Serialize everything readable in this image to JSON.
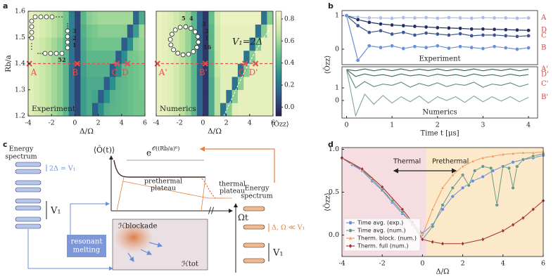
{
  "panel_labels": [
    "a",
    "b",
    "c",
    "d"
  ],
  "chart_data": [
    {
      "type": "heatmap",
      "title": "Experiment",
      "x_label": "Δ/Ω",
      "y_label": "Rb/a",
      "x_bins": [
        -4,
        -3.5,
        -3,
        -2.5,
        -2,
        -1.5,
        -1,
        -0.5,
        0,
        0.5,
        1,
        1.5,
        2,
        2.5,
        3,
        3.5,
        4,
        4.5,
        5,
        5.5,
        6
      ],
      "y_bins": [
        1.2,
        1.25,
        1.3,
        1.35,
        1.4,
        1.45,
        1.5,
        1.55,
        1.6
      ],
      "z": [
        [
          0.78,
          0.75,
          0.7,
          0.66,
          0.6,
          0.55,
          0.45,
          0.2,
          0.05,
          0.35,
          0.4,
          0.12,
          0.3,
          0.42,
          0.44,
          0.45,
          0.46,
          0.48,
          0.5,
          0.5
        ],
        [
          0.78,
          0.75,
          0.7,
          0.66,
          0.6,
          0.55,
          0.45,
          0.2,
          0.05,
          0.35,
          0.4,
          0.38,
          0.12,
          0.3,
          0.43,
          0.45,
          0.46,
          0.48,
          0.5,
          0.5
        ],
        [
          0.78,
          0.75,
          0.7,
          0.66,
          0.6,
          0.55,
          0.45,
          0.2,
          0.05,
          0.35,
          0.4,
          0.4,
          0.4,
          0.12,
          0.3,
          0.44,
          0.46,
          0.48,
          0.5,
          0.52
        ],
        [
          0.78,
          0.75,
          0.7,
          0.66,
          0.6,
          0.55,
          0.45,
          0.2,
          0.05,
          0.36,
          0.42,
          0.42,
          0.42,
          0.42,
          0.12,
          0.3,
          0.46,
          0.48,
          0.5,
          0.52
        ],
        [
          0.78,
          0.75,
          0.7,
          0.66,
          0.6,
          0.55,
          0.45,
          0.2,
          0.05,
          0.38,
          0.45,
          0.45,
          0.45,
          0.45,
          0.45,
          0.12,
          0.3,
          0.5,
          0.52,
          0.55
        ],
        [
          0.78,
          0.75,
          0.7,
          0.66,
          0.6,
          0.55,
          0.45,
          0.2,
          0.05,
          0.4,
          0.48,
          0.5,
          0.5,
          0.5,
          0.5,
          0.5,
          0.12,
          0.3,
          0.55,
          0.58
        ],
        [
          0.8,
          0.78,
          0.74,
          0.7,
          0.65,
          0.6,
          0.5,
          0.25,
          0.05,
          0.42,
          0.5,
          0.52,
          0.55,
          0.55,
          0.55,
          0.55,
          0.55,
          0.12,
          0.35,
          0.6
        ],
        [
          0.8,
          0.78,
          0.74,
          0.7,
          0.65,
          0.6,
          0.5,
          0.25,
          0.05,
          0.45,
          0.55,
          0.58,
          0.6,
          0.6,
          0.6,
          0.6,
          0.6,
          0.6,
          0.15,
          0.4
        ]
      ],
      "xlim": [
        -4,
        6
      ],
      "ylim": [
        1.2,
        1.6
      ],
      "xticks": [
        -4,
        -2,
        0,
        2,
        4,
        6
      ],
      "yticks": [
        1.2,
        1.3,
        1.4,
        1.5,
        1.6
      ],
      "cut_line": 1.4,
      "marker_color": "#e0524e",
      "markers": [
        {
          "label": "A",
          "x": -3.9,
          "y": 1.4
        },
        {
          "label": "B",
          "x": 0.2,
          "y": 1.4
        },
        {
          "label": "C",
          "x": 3.6,
          "y": 1.4
        },
        {
          "label": "D",
          "x": 4.5,
          "y": 1.4
        }
      ],
      "inset_labels": [
        "3",
        "2",
        "1",
        "52"
      ]
    },
    {
      "type": "heatmap",
      "title": "Numerics",
      "x_label": "Δ/Ω",
      "annotation": "V₁=2Δ",
      "x_bins": [
        -4,
        -3.5,
        -3,
        -2.5,
        -2,
        -1.5,
        -1,
        -0.5,
        0,
        0.5,
        1,
        1.5,
        2,
        2.5,
        3,
        3.5,
        4,
        4.5,
        5,
        5.5,
        6
      ],
      "y_bins": [
        1.2,
        1.25,
        1.3,
        1.35,
        1.4,
        1.45,
        1.5,
        1.55,
        1.6
      ],
      "z": [
        [
          0.82,
          0.8,
          0.77,
          0.72,
          0.66,
          0.58,
          0.45,
          0.15,
          0.0,
          0.4,
          0.65,
          0.2,
          0.55,
          0.78,
          0.8,
          0.8,
          0.8,
          0.8,
          0.8,
          0.8
        ],
        [
          0.82,
          0.8,
          0.77,
          0.72,
          0.66,
          0.58,
          0.45,
          0.15,
          0.0,
          0.4,
          0.65,
          0.78,
          0.2,
          0.55,
          0.8,
          0.8,
          0.8,
          0.8,
          0.8,
          0.8
        ],
        [
          0.82,
          0.8,
          0.77,
          0.72,
          0.66,
          0.58,
          0.45,
          0.15,
          0.0,
          0.4,
          0.65,
          0.78,
          0.78,
          0.2,
          0.55,
          0.8,
          0.8,
          0.8,
          0.8,
          0.8
        ],
        [
          0.82,
          0.8,
          0.77,
          0.72,
          0.66,
          0.58,
          0.45,
          0.15,
          0.0,
          0.42,
          0.68,
          0.78,
          0.78,
          0.78,
          0.2,
          0.55,
          0.8,
          0.8,
          0.8,
          0.8
        ],
        [
          0.82,
          0.8,
          0.77,
          0.72,
          0.66,
          0.58,
          0.45,
          0.15,
          0.0,
          0.42,
          0.7,
          0.8,
          0.8,
          0.8,
          0.8,
          0.2,
          0.55,
          0.8,
          0.8,
          0.8
        ],
        [
          0.82,
          0.8,
          0.77,
          0.72,
          0.66,
          0.58,
          0.45,
          0.15,
          0.0,
          0.45,
          0.72,
          0.8,
          0.8,
          0.8,
          0.8,
          0.8,
          0.2,
          0.55,
          0.8,
          0.8
        ],
        [
          0.82,
          0.8,
          0.77,
          0.72,
          0.66,
          0.58,
          0.45,
          0.15,
          0.0,
          0.45,
          0.72,
          0.8,
          0.8,
          0.8,
          0.8,
          0.8,
          0.8,
          0.2,
          0.55,
          0.8
        ],
        [
          0.82,
          0.8,
          0.77,
          0.72,
          0.66,
          0.58,
          0.45,
          0.15,
          0.0,
          0.48,
          0.75,
          0.82,
          0.82,
          0.82,
          0.82,
          0.82,
          0.82,
          0.82,
          0.2,
          0.55
        ]
      ],
      "xlim": [
        -4,
        6
      ],
      "ylim": [
        1.2,
        1.6
      ],
      "xticks": [
        -4,
        -2,
        0,
        2,
        4,
        6
      ],
      "cut_line": 1.4,
      "marker_color": "#e0524e",
      "markers": [
        {
          "label": "A'",
          "x": -3.9,
          "y": 1.4
        },
        {
          "label": "B'",
          "x": 0.2,
          "y": 1.4
        },
        {
          "label": "C'",
          "x": 3.6,
          "y": 1.4
        },
        {
          "label": "D'",
          "x": 4.5,
          "y": 1.4
        }
      ],
      "inset_labels": [
        "5",
        "4",
        "3",
        "2",
        "1",
        "16"
      ],
      "colorbar_label": "⟨Ôzz⟩",
      "zlim": [
        -0.08,
        0.87
      ],
      "colormap": [
        "#2b1d4e",
        "#2e5a8c",
        "#2b8f8e",
        "#6cc28a",
        "#c7e6a3",
        "#f6f6cc"
      ],
      "colorbar_ticks": [
        {
          "value": 0,
          "label": "0.0"
        },
        {
          "value": 0.2,
          "label": "0.2"
        },
        {
          "value": 0.4,
          "label": "0.4"
        },
        {
          "value": 0.6,
          "label": "0.6"
        },
        {
          "value": 0.8,
          "label": "0.8"
        }
      ]
    },
    {
      "type": "line",
      "title": "Experiment",
      "y_label": "⟨Ôzz⟩",
      "x": [
        0,
        0.25,
        0.5,
        0.75,
        1,
        1.25,
        1.5,
        1.75,
        2,
        2.25,
        2.5,
        2.75,
        3,
        3.25,
        3.5,
        3.75,
        4
      ],
      "xlim": [
        -0.1,
        4.2
      ],
      "ylim": [
        -0.46,
        1.15
      ],
      "yticks": [
        0,
        1
      ],
      "label_color": "#d9453f",
      "series": [
        {
          "name": "A",
          "color": "#a9bde8",
          "marker": "circle",
          "values": [
            1,
            0.95,
            0.93,
            0.93,
            0.92,
            0.94,
            0.93,
            0.94,
            0.92,
            0.94,
            0.93,
            0.92,
            0.94,
            0.93,
            0.93,
            0.92,
            0.93
          ]
        },
        {
          "name": "D",
          "color": "#1f2e5c",
          "marker": "circle",
          "values": [
            1,
            0.88,
            0.8,
            0.75,
            0.72,
            0.7,
            0.68,
            0.66,
            0.64,
            0.63,
            0.62,
            0.6,
            0.6,
            0.59,
            0.58,
            0.57,
            0.56
          ]
        },
        {
          "name": "C",
          "color": "#3d5590",
          "marker": "circle",
          "values": [
            1,
            0.7,
            0.5,
            0.55,
            0.45,
            0.5,
            0.42,
            0.48,
            0.45,
            0.42,
            0.46,
            0.4,
            0.42,
            0.42,
            0.4,
            0.38,
            0.4
          ]
        },
        {
          "name": "B",
          "color": "#6b8fd6",
          "marker": "circle",
          "values": [
            1,
            -0.33,
            0.1,
            0.05,
            0.1,
            0.02,
            0.08,
            0.05,
            0.1,
            0.03,
            0.08,
            0.05,
            0.02,
            0.08,
            0.04,
            0,
            0.04
          ]
        }
      ]
    },
    {
      "type": "line",
      "title": "Numerics",
      "x_label": "Time t [μs]",
      "x": [
        0,
        0.2,
        0.4,
        0.6,
        0.8,
        1,
        1.2,
        1.4,
        1.6,
        1.8,
        2,
        2.2,
        2.4,
        2.6,
        2.8,
        3,
        3.2,
        3.4,
        3.6,
        3.8,
        4
      ],
      "xlim": [
        -0.1,
        4.2
      ],
      "ylim": [
        -1.39,
        2.67
      ],
      "xticks": [
        0,
        1,
        2,
        3,
        4
      ],
      "yticks": [
        0,
        1
      ],
      "label_color": "#d9453f",
      "series": [
        {
          "name": "A'",
          "color": "#2f5e49",
          "values": [
            2.45,
            2.35,
            2.5,
            2.35,
            2.48,
            2.36,
            2.5,
            2.35,
            2.48,
            2.37,
            2.5,
            2.35,
            2.48,
            2.36,
            2.5,
            2.35,
            2.48,
            2.37,
            2.5,
            2.35,
            2.48
          ]
        },
        {
          "name": "D'",
          "color": "#3d6f58",
          "values": [
            2.45,
            1.9,
            2.1,
            1.95,
            2.05,
            1.9,
            2.1,
            1.95,
            2.05,
            1.92,
            2.08,
            1.95,
            2.05,
            1.9,
            2.1,
            1.95,
            2.05,
            1.92,
            2.08,
            1.95,
            2.05
          ]
        },
        {
          "name": "C'",
          "color": "#5a8a72",
          "values": [
            2.45,
            1.0,
            1.5,
            1.1,
            1.3,
            1.2,
            1.45,
            1.05,
            1.35,
            1.15,
            1.4,
            1.1,
            1.3,
            1.2,
            1.45,
            1.05,
            1.3,
            1.2,
            1.4,
            1.1,
            1.3
          ]
        },
        {
          "name": "B'",
          "color": "#7fa893",
          "values": [
            2.45,
            -1.2,
            0.5,
            -0.3,
            0.4,
            -0.2,
            0.3,
            -0.1,
            0.35,
            -0.2,
            0.3,
            0,
            0.3,
            -0.15,
            0.35,
            -0.1,
            0.3,
            -0.05,
            0.3,
            -0.1,
            0.25
          ]
        }
      ]
    },
    {
      "type": "line",
      "x_label": "Δ/Ω",
      "y_label": "⟨Ôzz⟩",
      "xlim": [
        -4,
        6
      ],
      "ylim": [
        -0.25,
        1.02
      ],
      "xticks": [
        -4,
        -2,
        0,
        2,
        4,
        6
      ],
      "yticks": [
        {
          "value": 0,
          "label": "0.0"
        },
        {
          "value": 0.5,
          "label": "0.5"
        },
        {
          "value": 1,
          "label": "1.0"
        }
      ],
      "legend": "lower left",
      "regions": [
        {
          "label": "Thermal",
          "from": -4,
          "to": 0.2,
          "color": "#e8b4be"
        },
        {
          "label": "Prethermal",
          "from": 0.2,
          "to": 6,
          "color": "#f7cf8a"
        }
      ],
      "series": [
        {
          "name": "Time avg. (exp.)",
          "color": "#6b8fd6",
          "marker": "circle",
          "x": [
            -4,
            -3.5,
            -3,
            -2.5,
            -2,
            -1.5,
            -1,
            -0.5,
            0,
            0.5,
            1,
            1.5,
            2,
            2.5,
            3,
            3.5,
            4,
            4.5,
            5,
            5.5,
            6
          ],
          "values": [
            0.9,
            0.82,
            0.75,
            0.63,
            0.52,
            0.38,
            0.25,
            0.15,
            0.02,
            0.12,
            0.3,
            0.45,
            0.55,
            0.63,
            0.68,
            0.75,
            0.8,
            0.85,
            0.88,
            0.9,
            0.93
          ]
        },
        {
          "name": "Time avg. (num.)",
          "color": "#6b9a7f",
          "marker": "circle",
          "x": [
            -4,
            -3.5,
            -3,
            -2.5,
            -2,
            -1.5,
            -1,
            -0.5,
            0,
            0.5,
            1,
            1.5,
            2,
            2.3,
            2.6,
            3,
            3.4,
            3.7,
            4,
            4.3,
            4.5,
            4.7,
            5,
            5.5,
            6
          ],
          "values": [
            0.9,
            0.83,
            0.76,
            0.65,
            0.53,
            0.4,
            0.27,
            0.12,
            -0.05,
            0.1,
            0.35,
            0.55,
            0.7,
            0.58,
            0.75,
            0.8,
            0.78,
            0.35,
            0.8,
            0.78,
            0.55,
            0.8,
            0.88,
            0.92,
            0.95
          ]
        },
        {
          "name": "Therm. block. (num.)",
          "color": "#f09a5a",
          "marker": "triangle",
          "x": [
            -4,
            -3.5,
            -3,
            -2.5,
            -2,
            -1.5,
            -1,
            -0.5,
            0,
            0.5,
            1,
            1.5,
            2,
            2.5,
            3,
            3.5,
            4,
            4.5,
            5,
            5.5,
            6
          ],
          "values": [
            0.9,
            0.84,
            0.77,
            0.67,
            0.56,
            0.43,
            0.3,
            0.15,
            0.0,
            0.3,
            0.55,
            0.7,
            0.8,
            0.86,
            0.9,
            0.92,
            0.94,
            0.95,
            0.96,
            0.96,
            0.97
          ]
        },
        {
          "name": "Therm. full (num.)",
          "color": "#a3303c",
          "marker": "diamond",
          "x": [
            -4,
            -3,
            -2,
            -1,
            -0.5,
            0,
            0.5,
            1,
            2,
            3,
            4,
            4.5,
            5,
            5.5,
            6
          ],
          "values": [
            0.9,
            0.77,
            0.56,
            0.3,
            0.15,
            -0.05,
            -0.08,
            -0.1,
            -0.1,
            -0.05,
            0.05,
            0.12,
            0.2,
            0.3,
            0.4
          ]
        }
      ]
    }
  ],
  "diagram": {
    "energy_left": [
      "Energy",
      "spectrum"
    ],
    "gap_label": "2Δ = V₁",
    "v1_left": "V₁",
    "y_axis": "⟨Ô(t)⟩",
    "exponent_base": "e",
    "exponent": "𝒪((Rb/a)⁶)",
    "prethermal": [
      "prethermal",
      "plateau"
    ],
    "thermal": [
      "thermal",
      "plateau"
    ],
    "x_axis": "Ωt",
    "energy_right": [
      "Energy",
      "spectrum"
    ],
    "small_gap": "Δ, Ω ≪ V₁",
    "v1_right": "V₁",
    "melting": [
      "resonant",
      "melting"
    ],
    "h_block": "ℋblockade",
    "h_tot": "ℋtot"
  }
}
